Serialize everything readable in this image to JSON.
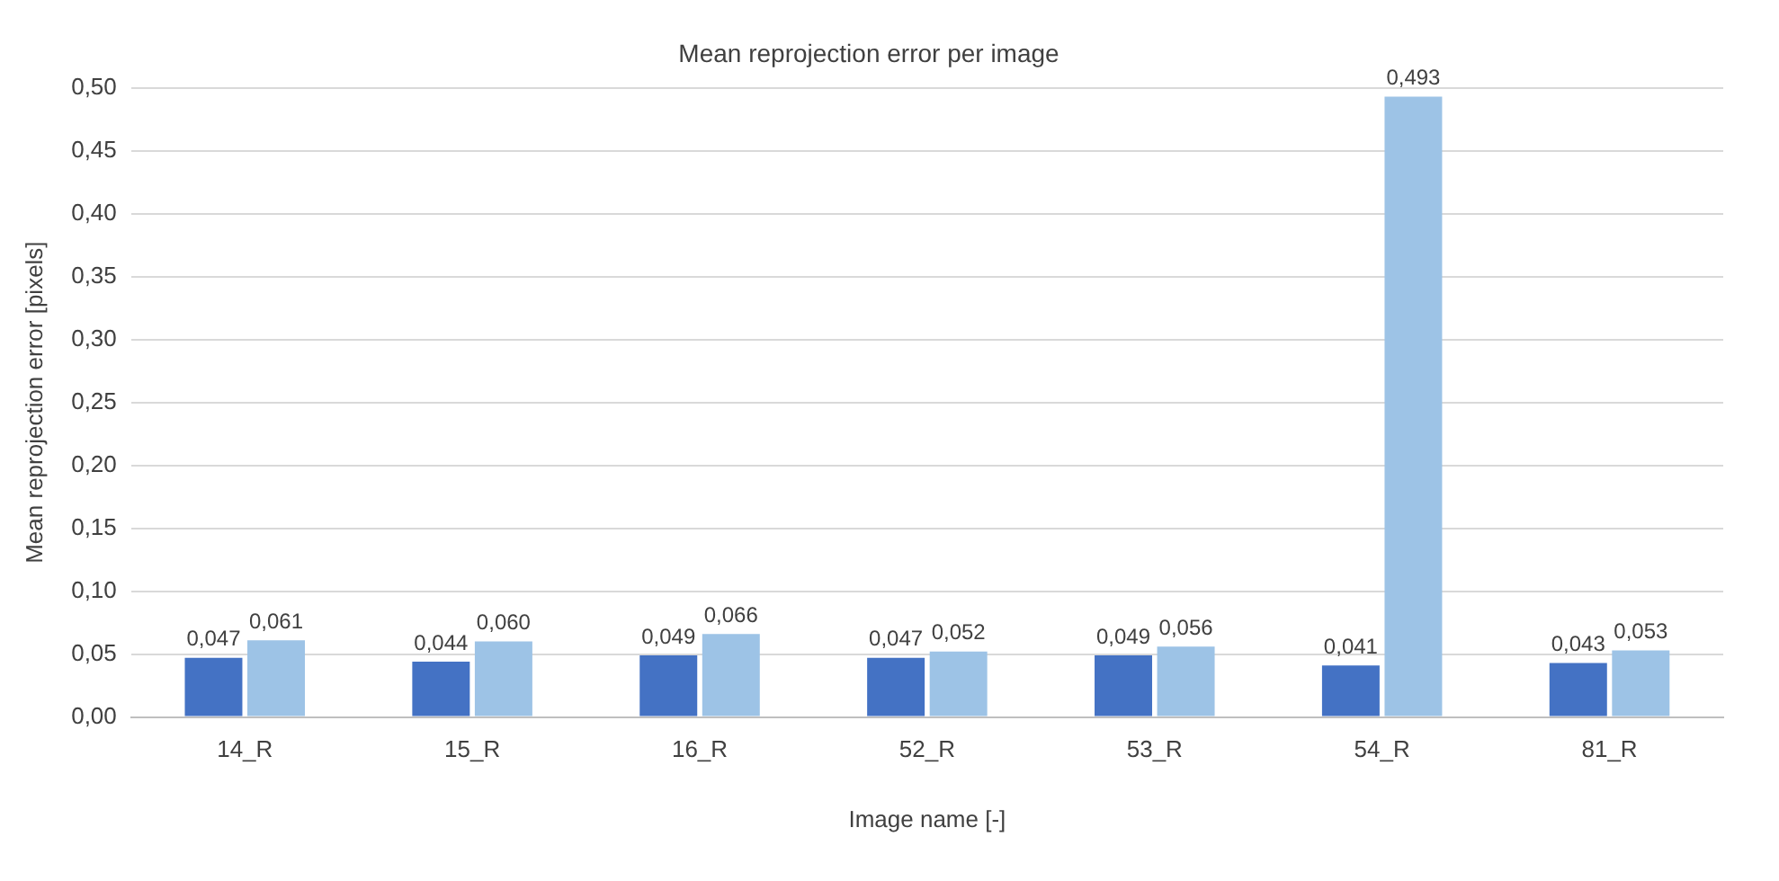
{
  "chart_data": {
    "type": "bar",
    "title": "Mean reprojection error per image",
    "xlabel": "Image name [-]",
    "ylabel": "Mean reprojection error [pixels]",
    "categories": [
      "14_R",
      "15_R",
      "16_R",
      "52_R",
      "53_R",
      "54_R",
      "81_R"
    ],
    "series": [
      {
        "color": "#4472c4",
        "values": [
          0.047,
          0.044,
          0.049,
          0.047,
          0.049,
          0.041,
          0.043
        ],
        "value_labels": [
          "0,047",
          "0,044",
          "0,049",
          "0,047",
          "0,049",
          "0,041",
          "0,043"
        ]
      },
      {
        "color": "#9dc3e6",
        "values": [
          0.061,
          0.06,
          0.066,
          0.052,
          0.056,
          0.493,
          0.053
        ],
        "value_labels": [
          "0,061",
          "0,060",
          "0,066",
          "0,052",
          "0,056",
          "0,493",
          "0,053"
        ]
      }
    ],
    "ylim": [
      0,
      0.5
    ],
    "yticks": [
      {
        "value": 0,
        "label": "0,00"
      },
      {
        "value": 0.05,
        "label": "0,05"
      },
      {
        "value": 0.1,
        "label": "0,10"
      },
      {
        "value": 0.15,
        "label": "0,15"
      },
      {
        "value": 0.2,
        "label": "0,20"
      },
      {
        "value": 0.25,
        "label": "0,25"
      },
      {
        "value": 0.3,
        "label": "0,30"
      },
      {
        "value": 0.35,
        "label": "0,35"
      },
      {
        "value": 0.4,
        "label": "0,40"
      },
      {
        "value": 0.45,
        "label": "0,45"
      },
      {
        "value": 0.5,
        "label": "0,50"
      }
    ],
    "grid": "y"
  }
}
